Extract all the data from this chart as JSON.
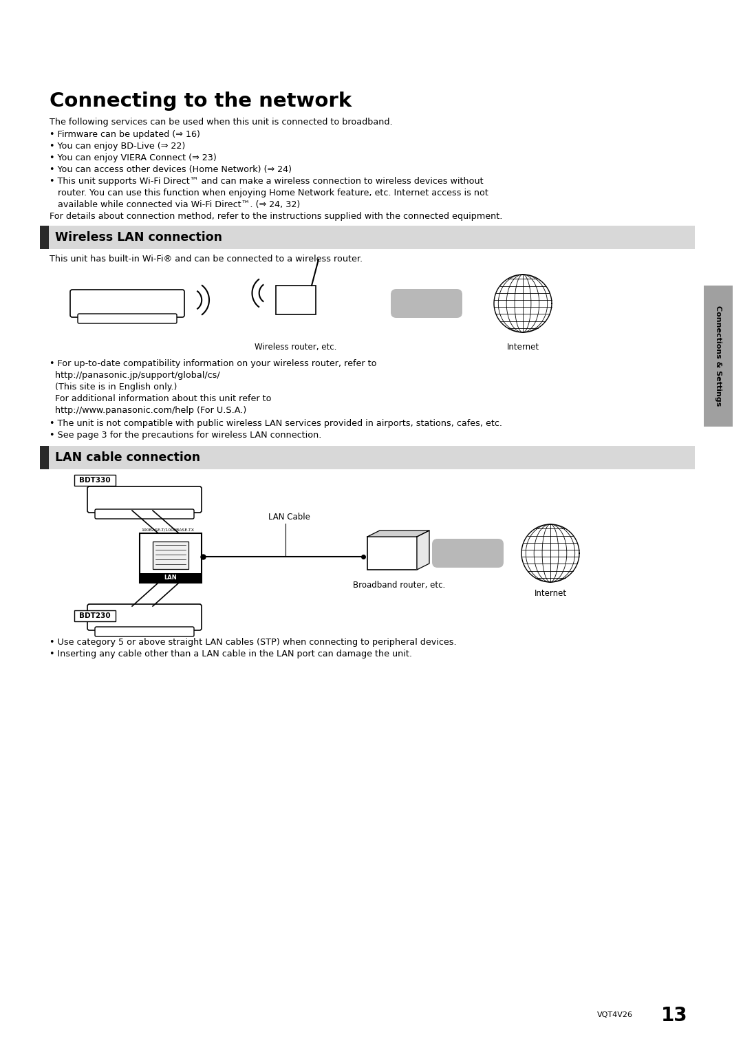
{
  "bg_color": "#ffffff",
  "title": "Connecting to the network",
  "title_fontsize": 21,
  "body_fontsize": 9.2,
  "small_fontsize": 8.5,
  "sidebar_text": "Connections & Settings",
  "page_number": "13",
  "page_code": "VQT4V26",
  "intro_text": "The following services can be used when this unit is connected to broadband.",
  "section1_title": "Wireless LAN connection",
  "section1_body": "This unit has built-in Wi-Fi® and can be connected to a wireless router.",
  "wireless_label1": "Wireless router, etc.",
  "wireless_label2": "Internet",
  "section2_title": "LAN cable connection",
  "lan_label1": "LAN Cable",
  "lan_label2": "Broadband router, etc.",
  "lan_label3": "Internet",
  "bdt330_label": "BDT330",
  "bdt230_label": "BDT230"
}
